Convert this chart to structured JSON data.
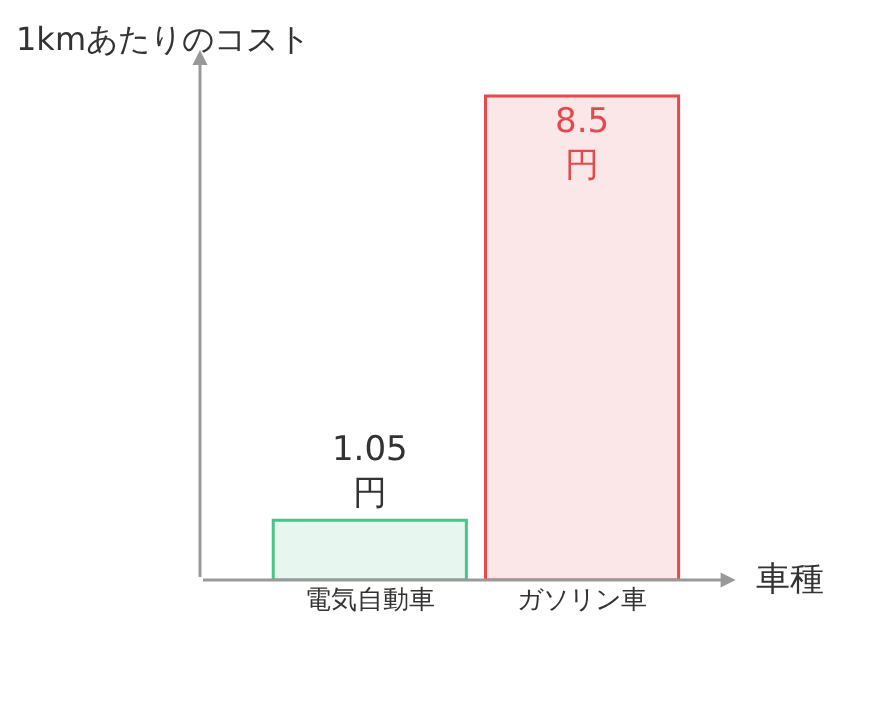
{
  "chart_data": {
    "type": "bar",
    "ylabel": "1kmあたりのコスト",
    "xlabel": "車種",
    "categories": [
      "電気自動車",
      "ガソリン車"
    ],
    "values": [
      1.05,
      8.5
    ],
    "colors": [
      "#4cc38a",
      "#e5484d"
    ],
    "value_labels": [
      "1.05\n円",
      "8.5\n円"
    ],
    "legend": false
  }
}
